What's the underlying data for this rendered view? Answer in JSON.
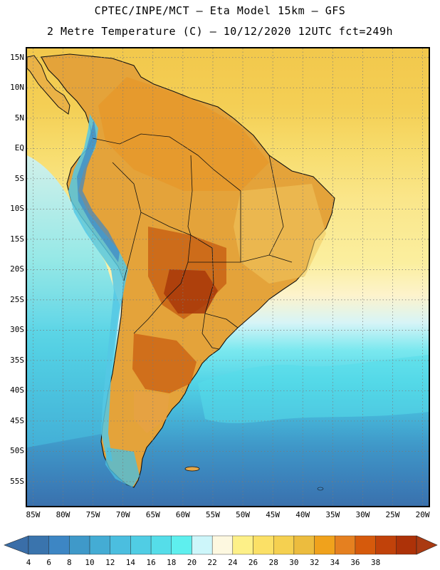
{
  "title": {
    "line1": "CPTEC/INPE/MCT –  Eta Model 15km – GFS",
    "line2": "2 Metre Temperature (C) – 10/12/2020 12UTC fct=249h"
  },
  "map": {
    "lon_range": [
      -86,
      -19
    ],
    "lat_range": [
      -59,
      16.5
    ],
    "lat_labels": [
      "15N",
      "10N",
      "5N",
      "EQ",
      "5S",
      "10S",
      "15S",
      "20S",
      "25S",
      "30S",
      "35S",
      "40S",
      "45S",
      "50S",
      "55S"
    ],
    "lat_values": [
      15,
      10,
      5,
      0,
      -5,
      -10,
      -15,
      -20,
      -25,
      -30,
      -35,
      -40,
      -45,
      -50,
      -55
    ],
    "lon_labels": [
      "85W",
      "80W",
      "75W",
      "70W",
      "65W",
      "60W",
      "55W",
      "50W",
      "45W",
      "40W",
      "35W",
      "30W",
      "25W",
      "20W"
    ],
    "lon_values": [
      -85,
      -80,
      -75,
      -70,
      -65,
      -60,
      -55,
      -50,
      -45,
      -40,
      -35,
      -30,
      -25,
      -20
    ],
    "continent_region": "South America",
    "hot_regions": [
      "Paraguay / Chaco",
      "Central Argentina",
      "Mato Grosso"
    ]
  },
  "legend": {
    "levels": [
      "4",
      "6",
      "8",
      "10",
      "12",
      "14",
      "16",
      "18",
      "20",
      "22",
      "24",
      "26",
      "28",
      "30",
      "32",
      "34",
      "36",
      "38"
    ],
    "colors": [
      "#3a74ad",
      "#3d86c4",
      "#3f99c9",
      "#44acd4",
      "#4bbedf",
      "#50cde4",
      "#55dde9",
      "#5eefee",
      "#cdf6fa",
      "#fdf8e0",
      "#fdf088",
      "#fbe066",
      "#f5d050",
      "#ecbc3e",
      "#f0a21c",
      "#e58020",
      "#d65a0c",
      "#c1420a",
      "#ad3208"
    ],
    "under_color": "#3a6ea8",
    "over_color": "#aa3a12"
  }
}
